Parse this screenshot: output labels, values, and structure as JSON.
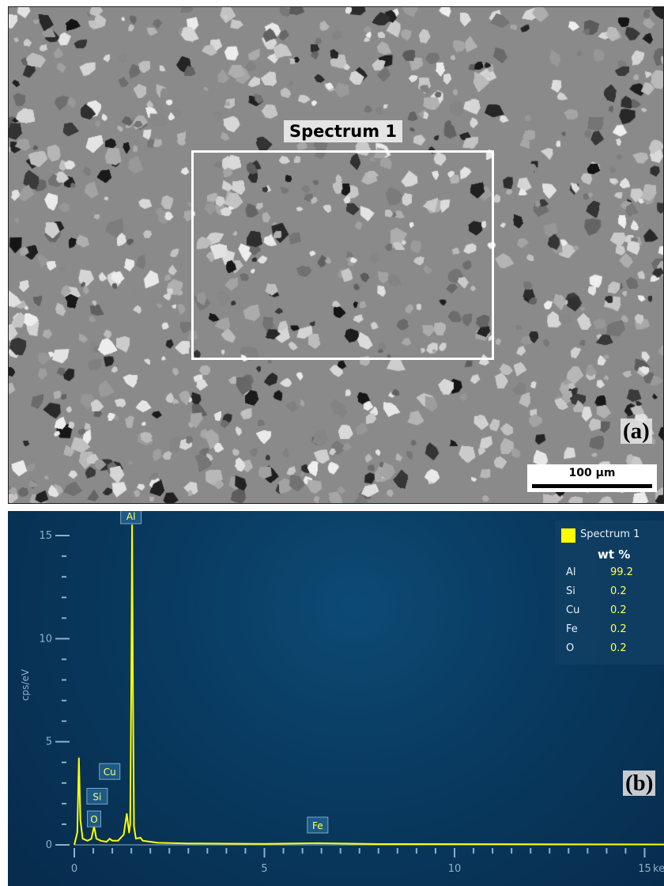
{
  "panel_a": {
    "roi_label": "Spectrum 1",
    "panel_tag": "(a)",
    "scale_bar": "100 µm"
  },
  "panel_b": {
    "panel_tag": "(b)",
    "legend_title": "Spectrum 1",
    "legend_header": "wt %",
    "composition": [
      {
        "element": "Al",
        "wt": "99.2"
      },
      {
        "element": "Si",
        "wt": "0.2"
      },
      {
        "element": "Cu",
        "wt": "0.2"
      },
      {
        "element": "Fe",
        "wt": "0.2"
      },
      {
        "element": "O",
        "wt": "0.2"
      }
    ]
  },
  "chart_data": {
    "type": "line",
    "title": "",
    "xlabel": "keV",
    "ylabel": "cps/eV",
    "xlim": [
      0,
      20
    ],
    "ylim": [
      0,
      15.5
    ],
    "x_ticks": [
      0,
      5,
      10,
      15
    ],
    "y_ticks": [
      0,
      5,
      10,
      15
    ],
    "legend_placement": "top-right",
    "series": [
      {
        "name": "Spectrum 1",
        "color": "#ffff00",
        "points": [
          [
            0.0,
            0.0
          ],
          [
            0.08,
            0.6
          ],
          [
            0.12,
            4.2
          ],
          [
            0.16,
            1.2
          ],
          [
            0.22,
            0.3
          ],
          [
            0.35,
            0.2
          ],
          [
            0.45,
            0.3
          ],
          [
            0.52,
            0.9
          ],
          [
            0.58,
            0.3
          ],
          [
            0.7,
            0.2
          ],
          [
            0.85,
            0.15
          ],
          [
            0.93,
            0.3
          ],
          [
            1.0,
            0.2
          ],
          [
            1.15,
            0.2
          ],
          [
            1.3,
            0.5
          ],
          [
            1.38,
            1.5
          ],
          [
            1.44,
            0.6
          ],
          [
            1.47,
            1.0
          ],
          [
            1.5,
            8.0
          ],
          [
            1.52,
            15.5
          ],
          [
            1.54,
            8.0
          ],
          [
            1.57,
            0.9
          ],
          [
            1.62,
            0.3
          ],
          [
            1.74,
            0.35
          ],
          [
            1.8,
            0.2
          ],
          [
            2.2,
            0.1
          ],
          [
            3.0,
            0.07
          ],
          [
            5.0,
            0.05
          ],
          [
            6.4,
            0.08
          ],
          [
            8.0,
            0.04
          ],
          [
            12.0,
            0.03
          ],
          [
            16.0,
            0.02
          ],
          [
            20.0,
            0.02
          ]
        ]
      }
    ],
    "peak_labels": [
      {
        "label": "Al",
        "x": 1.49,
        "y": 15.5
      },
      {
        "label": "Cu",
        "x": 0.93,
        "y": 3.1
      },
      {
        "label": "Si",
        "x": 0.6,
        "y": 1.9
      },
      {
        "label": "O",
        "x": 0.52,
        "y": 0.8
      },
      {
        "label": "Fe",
        "x": 6.4,
        "y": 0.5
      }
    ]
  }
}
